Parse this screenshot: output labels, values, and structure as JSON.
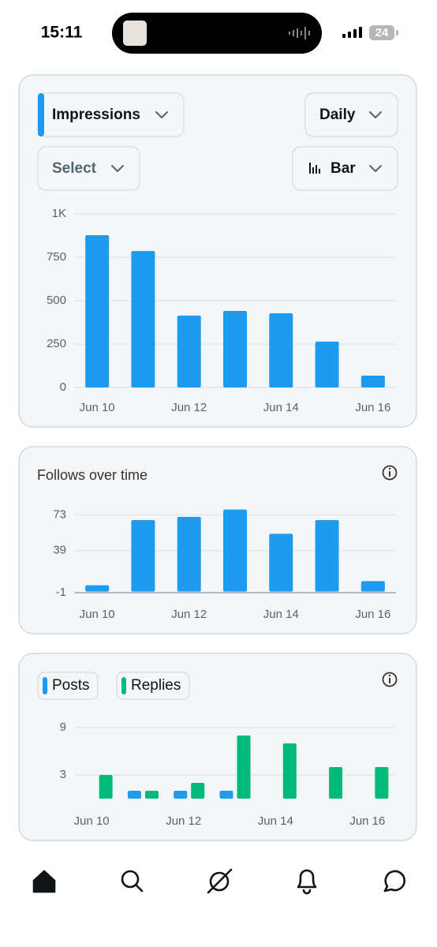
{
  "status_bar": {
    "time": "15:11",
    "battery": "24"
  },
  "controls": {
    "metric": "Impressions",
    "period": "Daily",
    "compare": "Select",
    "chart_kind": "Bar"
  },
  "chart_data": [
    {
      "type": "bar",
      "categories": [
        "Jun 10",
        null,
        "Jun 12",
        null,
        "Jun 14",
        null,
        "Jun 16"
      ],
      "values": [
        877,
        786,
        414,
        441,
        427,
        264,
        68
      ],
      "color": "#1d9bf0",
      "ylim": [
        0,
        1000
      ],
      "yticks": [
        0,
        250,
        500,
        750,
        {
          "value": 1000,
          "label": "1K"
        }
      ],
      "grid": true
    },
    {
      "type": "bar",
      "title": "Follows over time",
      "categories": [
        "Jun 10",
        null,
        "Jun 12",
        null,
        "Jun 14",
        null,
        "Jun 16"
      ],
      "values": [
        6,
        68,
        71,
        78,
        55,
        68,
        10
      ],
      "color": "#1d9bf0",
      "ylim": [
        -1,
        80
      ],
      "yticks": [
        -1,
        39,
        73
      ],
      "grid": true
    },
    {
      "type": "grouped_bar",
      "categories": [
        "Jun 10",
        null,
        "Jun 12",
        null,
        "Jun 14",
        null,
        "Jun 16"
      ],
      "series": [
        {
          "name": "Posts",
          "color": "#1d9bf0",
          "values": [
            0,
            1,
            1,
            1,
            0,
            0,
            0
          ]
        },
        {
          "name": "Replies",
          "color": "#00ba7c",
          "values": [
            3,
            1,
            2,
            8,
            7,
            4,
            4
          ]
        }
      ],
      "ylim": [
        0,
        9
      ],
      "yticks": [
        3,
        9
      ],
      "grid": true
    }
  ]
}
